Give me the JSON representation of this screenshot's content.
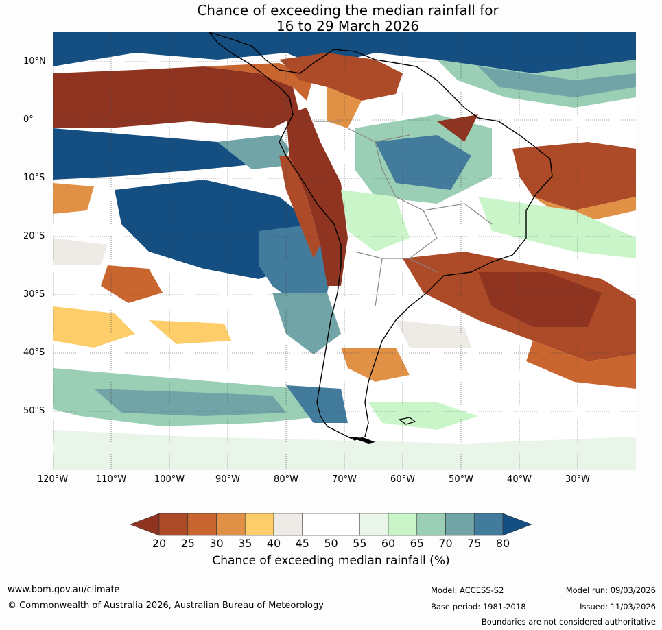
{
  "title": {
    "line1": "Chance of exceeding the median rainfall for",
    "line2": "16 to 29 March 2026"
  },
  "map": {
    "lat_labels": [
      "10°N",
      "0°",
      "10°S",
      "20°S",
      "30°S",
      "40°S",
      "50°S"
    ],
    "lon_labels": [
      "120°W",
      "110°W",
      "100°W",
      "90°W",
      "80°W",
      "70°W",
      "60°W",
      "50°W",
      "40°W",
      "30°W"
    ]
  },
  "colorbar": {
    "ticks": [
      "20",
      "25",
      "30",
      "35",
      "40",
      "45",
      "50",
      "55",
      "60",
      "65",
      "70",
      "75",
      "80"
    ],
    "colors": [
      "#8f3420",
      "#ad4a28",
      "#c9652f",
      "#e19146",
      "#fdcd6a",
      "#eeebe6",
      "#ffffff",
      "#ffffff",
      "#e9f5e9",
      "#c9f5c9",
      "#9acfb6",
      "#70a4a6",
      "#437b9c",
      "#154f82"
    ],
    "label": "Chance of exceeding median rainfall (%)"
  },
  "footer": {
    "url": "www.bom.gov.au/climate",
    "copyright": "© Commonwealth of Australia 2026, Australian Bureau of Meteorology",
    "model": "Model: ACCESS-S2",
    "model_run": "Model run: 09/03/2026",
    "base_period": "Base period: 1981-2018",
    "issued": "Issued: 11/03/2026",
    "boundaries": "Boundaries are not considered authoritative"
  }
}
